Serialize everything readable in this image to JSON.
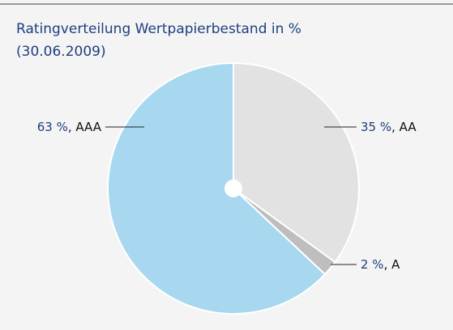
{
  "chart_data": {
    "type": "pie",
    "title": "Ratingverteilung Wertpapierbestand in %",
    "subtitle": "(30.06.2009)",
    "categories": [
      "AA",
      "A",
      "AAA"
    ],
    "values": [
      35,
      2,
      63
    ],
    "value_labels": [
      "35 %",
      "2 %",
      "63 %"
    ],
    "label_separator": ", ",
    "colors": [
      "#e2e2e2",
      "#bebebe",
      "#a7d8f0"
    ]
  }
}
